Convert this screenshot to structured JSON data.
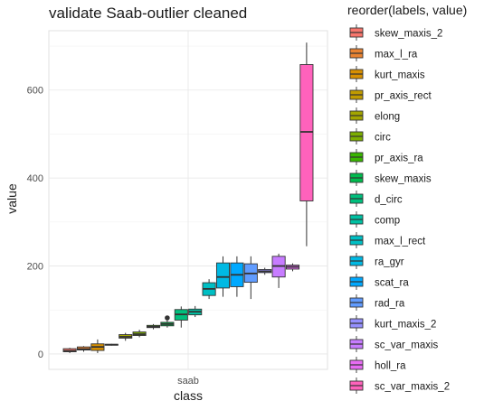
{
  "chart_data": {
    "type": "boxplot",
    "title": "validate Saab-outlier cleaned",
    "xlabel": "class",
    "ylabel": "value",
    "categories": [
      "saab"
    ],
    "ylim": [
      -35,
      735
    ],
    "yticks": [
      0,
      200,
      400,
      600
    ],
    "grid": true,
    "legend": {
      "title": "reorder(labels, value)",
      "placement": "right"
    },
    "series": [
      {
        "name": "skew_maxis_2",
        "color": "#F8766D",
        "min": 2,
        "q1": 5,
        "median": 7,
        "q3": 12,
        "max": 14,
        "outliers": []
      },
      {
        "name": "max_l_ra",
        "color": "#EA8331",
        "min": 5,
        "q1": 9,
        "median": 11,
        "q3": 16,
        "max": 18,
        "outliers": []
      },
      {
        "name": "kurt_maxis",
        "color": "#D89000",
        "min": 2,
        "q1": 8,
        "median": 16,
        "q3": 23,
        "max": 33,
        "outliers": []
      },
      {
        "name": "pr_axis_rect",
        "color": "#C09B00",
        "min": 19,
        "q1": 20,
        "median": 21,
        "q3": 22,
        "max": 23,
        "outliers": []
      },
      {
        "name": "elong",
        "color": "#A3A500",
        "min": 30,
        "q1": 36,
        "median": 39,
        "q3": 44,
        "max": 48,
        "outliers": []
      },
      {
        "name": "circ",
        "color": "#7CAE00",
        "min": 38,
        "q1": 42,
        "median": 45,
        "q3": 50,
        "max": 55,
        "outliers": []
      },
      {
        "name": "pr_axis_ra",
        "color": "#39B600",
        "min": 56,
        "q1": 60,
        "median": 62,
        "q3": 65,
        "max": 68,
        "outliers": []
      },
      {
        "name": "skew_maxis",
        "color": "#00BB4E",
        "min": 60,
        "q1": 64,
        "median": 68,
        "q3": 72,
        "max": 76,
        "outliers": [
          82
        ]
      },
      {
        "name": "d_circ",
        "color": "#00BF7D",
        "min": 60,
        "q1": 77,
        "median": 90,
        "q3": 101,
        "max": 108,
        "outliers": []
      },
      {
        "name": "comp",
        "color": "#00C1A3",
        "min": 84,
        "q1": 89,
        "median": 96,
        "q3": 102,
        "max": 109,
        "outliers": []
      },
      {
        "name": "max_l_rect",
        "color": "#00BFC4",
        "min": 125,
        "q1": 133,
        "median": 148,
        "q3": 162,
        "max": 170,
        "outliers": []
      },
      {
        "name": "ra_gyr",
        "color": "#00B9E3",
        "min": 130,
        "q1": 150,
        "median": 175,
        "q3": 207,
        "max": 222,
        "outliers": []
      },
      {
        "name": "scat_ra",
        "color": "#00A9FF",
        "min": 130,
        "q1": 153,
        "median": 180,
        "q3": 207,
        "max": 222,
        "outliers": []
      },
      {
        "name": "rad_ra",
        "color": "#619CFF",
        "min": 125,
        "q1": 163,
        "median": 183,
        "q3": 205,
        "max": 222,
        "outliers": []
      },
      {
        "name": "kurt_maxis_2",
        "color": "#9590FF",
        "min": 180,
        "q1": 185,
        "median": 188,
        "q3": 192,
        "max": 196,
        "outliers": []
      },
      {
        "name": "sc_var_maxis",
        "color": "#C77CFF",
        "min": 150,
        "q1": 175,
        "median": 200,
        "q3": 222,
        "max": 228,
        "outliers": []
      },
      {
        "name": "holl_ra",
        "color": "#E76BF3",
        "min": 188,
        "q1": 193,
        "median": 198,
        "q3": 202,
        "max": 206,
        "outliers": []
      },
      {
        "name": "sc_var_maxis_2",
        "color": "#FF62BC",
        "min": 245,
        "q1": 348,
        "median": 505,
        "q3": 658,
        "max": 708,
        "outliers": []
      }
    ]
  }
}
